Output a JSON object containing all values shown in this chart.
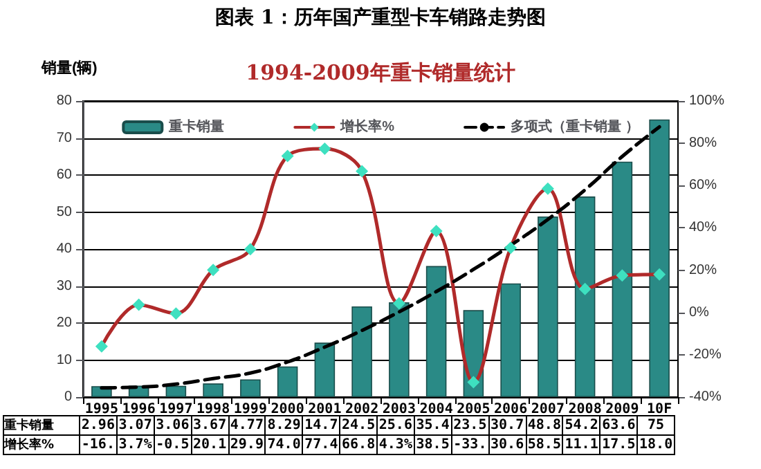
{
  "chart_data": {
    "type": "bar",
    "title": "图表 1：历年国产重型卡车销路走势图",
    "subtitle": "1994-2009年重卡销量统计",
    "ylabel": "销量(辆)",
    "categories": [
      "1995",
      "1996",
      "1997",
      "1998",
      "1999",
      "2000",
      "2001",
      "2002",
      "2003",
      "2004",
      "2005",
      "2006",
      "2007",
      "2008",
      "2009",
      "10F"
    ],
    "series": [
      {
        "name": "重卡销量",
        "color": "#2a8a86",
        "values": [
          2.96,
          3.07,
          3.06,
          3.67,
          4.77,
          8.29,
          14.7,
          24.5,
          25.6,
          35.4,
          23.5,
          30.7,
          48.8,
          54.2,
          63.6,
          75
        ],
        "value_labels": [
          "2.96",
          "3.07",
          "3.06",
          "3.67",
          "4.77",
          "8.29",
          "14.7",
          "24.5",
          "25.6",
          "35.4",
          "23.5",
          "30.7",
          "48.8",
          "54.2",
          "63.6",
          "75"
        ]
      },
      {
        "name": "增长率%",
        "type": "line",
        "axis": "y2",
        "color": "#b02a2a",
        "marker": "diamond",
        "values": [
          -16,
          3.7,
          -0.5,
          20.1,
          29.9,
          74.0,
          77.4,
          66.8,
          4.3,
          38.5,
          -33,
          30.6,
          58.5,
          11.1,
          17.5,
          18.0
        ],
        "value_labels": [
          "-16.",
          "3.7%",
          "-0.5",
          "20.1",
          "29.9",
          "74.0",
          "77.4",
          "66.8",
          "4.3%",
          "38.5",
          "-33.",
          "30.6",
          "58.5",
          "11.1",
          "17.5",
          "18.0"
        ]
      },
      {
        "name": "多项式（重卡销量 ）",
        "type": "line",
        "color": "#000000",
        "marker": "none",
        "line_style": "dashed",
        "values": [
          2.5,
          2.7,
          3.5,
          5,
          6.5,
          9.5,
          13.5,
          18,
          23,
          28.5,
          34.5,
          41,
          48,
          56,
          65,
          73
        ]
      }
    ],
    "ylim": [
      0,
      80
    ],
    "yticks": [
      0,
      10,
      20,
      30,
      40,
      50,
      60,
      70,
      80
    ],
    "y2lim": [
      -40,
      100
    ],
    "y2ticks": [
      {
        "value": -40,
        "label": "-40%"
      },
      {
        "value": -20,
        "label": "-20%"
      },
      {
        "value": 0,
        "label": "0%"
      },
      {
        "value": 20,
        "label": "20%"
      },
      {
        "value": 40,
        "label": "40%"
      },
      {
        "value": 60,
        "label": "60%"
      },
      {
        "value": 80,
        "label": "80%"
      },
      {
        "value": 100,
        "label": "100%"
      }
    ],
    "grid": "y",
    "legend": "top"
  }
}
